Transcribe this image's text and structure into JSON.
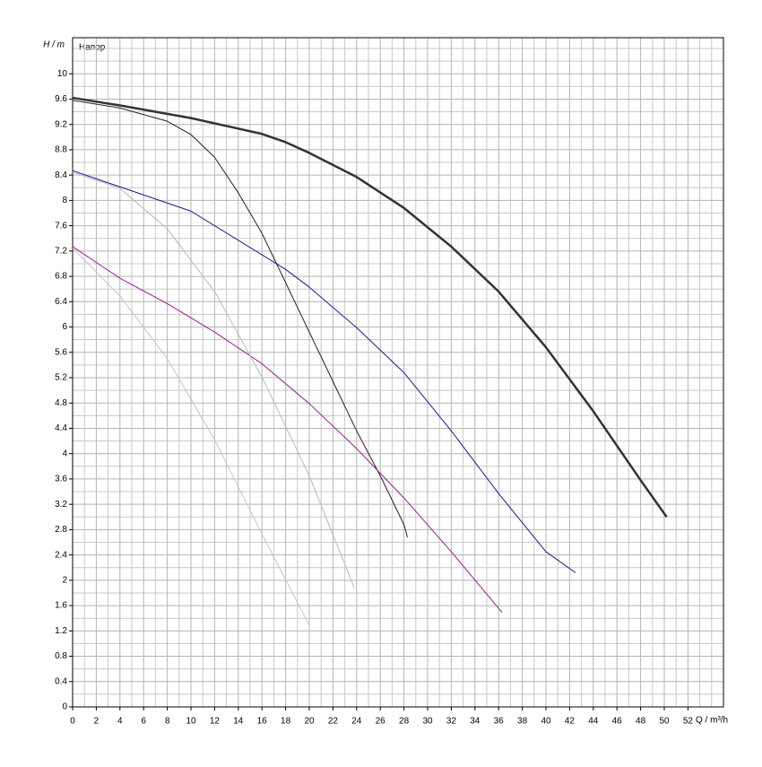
{
  "chart_data": {
    "type": "line",
    "y_label": "H / m",
    "curve_label": "Напор",
    "x_label": "Q / m³/h",
    "xlim": [
      0,
      55
    ],
    "ylim": [
      0,
      10.57
    ],
    "xticks": [
      0,
      2,
      4,
      6,
      8,
      10,
      12,
      14,
      16,
      18,
      20,
      22,
      24,
      26,
      28,
      30,
      32,
      34,
      36,
      38,
      40,
      42,
      44,
      46,
      48,
      50,
      52
    ],
    "yticks": [
      0,
      0.4,
      0.8,
      1.2,
      1.6,
      2,
      2.4,
      2.8,
      3.2,
      3.6,
      4,
      4.4,
      4.8,
      5.2,
      5.6,
      6,
      6.4,
      6.8,
      7.2,
      7.6,
      8,
      8.4,
      8.8,
      9.2,
      9.6,
      10
    ],
    "grid": true,
    "series": [
      {
        "color": "#333333",
        "width": 2.5,
        "x": [
          0,
          4,
          10,
          16,
          18,
          20,
          24,
          28,
          32,
          36,
          40,
          44,
          48,
          50.2
        ],
        "values": [
          9.62,
          9.5,
          9.3,
          9.05,
          8.92,
          8.75,
          8.37,
          7.88,
          7.27,
          6.56,
          5.68,
          4.67,
          3.58,
          3.0
        ]
      },
      {
        "color": "#222222",
        "width": 1,
        "x": [
          0,
          4,
          8,
          10,
          12,
          14,
          16,
          18,
          20,
          22,
          24,
          26,
          28,
          28.3
        ],
        "values": [
          9.58,
          9.46,
          9.25,
          9.04,
          8.68,
          8.12,
          7.48,
          6.7,
          5.92,
          5.14,
          4.36,
          3.65,
          2.88,
          2.68
        ]
      },
      {
        "color": "#1a1a8c",
        "width": 1,
        "x": [
          0,
          10,
          18,
          20,
          24,
          28,
          32,
          36,
          40,
          42.5
        ],
        "values": [
          8.47,
          7.83,
          6.91,
          6.63,
          5.99,
          5.28,
          4.36,
          3.37,
          2.45,
          2.12
        ]
      },
      {
        "color": "#9a1a9a",
        "width": 1,
        "x": [
          0,
          4,
          8,
          12,
          16,
          20,
          24,
          28,
          32,
          36.3
        ],
        "values": [
          7.27,
          6.77,
          6.37,
          5.92,
          5.42,
          4.79,
          4.08,
          3.3,
          2.45,
          1.49
        ]
      },
      {
        "color": "#b8b8b8",
        "width": 1,
        "x": [
          0,
          4,
          8,
          12,
          16,
          20,
          23.8
        ],
        "values": [
          8.45,
          8.19,
          7.55,
          6.56,
          5.21,
          3.65,
          1.88
        ]
      },
      {
        "color": "#c4c4c4",
        "width": 1,
        "x": [
          0,
          4,
          8,
          12,
          16,
          20
        ],
        "values": [
          7.25,
          6.49,
          5.5,
          4.22,
          2.73,
          1.29
        ]
      }
    ]
  }
}
